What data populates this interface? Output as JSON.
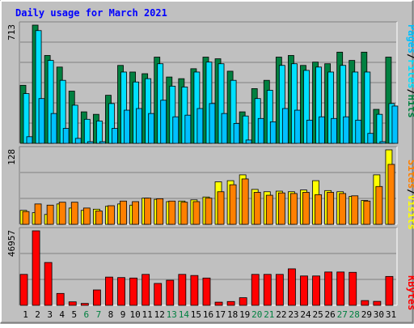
{
  "title": "Daily usage for March 2021",
  "colors": {
    "background": "#C0C0C0",
    "title": "#0000FF",
    "hits": "#008040",
    "files": "#00E0FF",
    "pages": "#00C0FF",
    "visits": "#FFFF00",
    "sites": "#FF8000",
    "kbytes": "#FF0000",
    "gridline": "#808080",
    "weekend_label": "#008040"
  },
  "labels": {
    "pages": "Pages",
    "files": "Files",
    "hits": "Hits",
    "sites": "Sites",
    "visits": "Visits",
    "kbytes": "KBytes",
    "sep": "/"
  },
  "chart_data": [
    {
      "type": "bar",
      "panel": "hits-files-pages",
      "ymax_label": "713",
      "ylim": [
        0,
        713
      ],
      "categories": [
        "1",
        "2",
        "3",
        "4",
        "5",
        "6",
        "7",
        "8",
        "9",
        "10",
        "11",
        "12",
        "13",
        "14",
        "15",
        "16",
        "17",
        "18",
        "19",
        "20",
        "21",
        "22",
        "23",
        "24",
        "25",
        "26",
        "27",
        "28",
        "29",
        "30",
        "31"
      ],
      "weekend_days": [
        "6",
        "7",
        "13",
        "14",
        "20",
        "21",
        "27",
        "28"
      ],
      "series": [
        {
          "name": "Hits",
          "values": [
            350,
            713,
            530,
            460,
            315,
            190,
            175,
            290,
            470,
            430,
            420,
            520,
            400,
            390,
            450,
            520,
            510,
            435,
            190,
            330,
            380,
            520,
            530,
            470,
            490,
            480,
            550,
            500,
            550,
            205,
            520
          ]
        },
        {
          "name": "Files",
          "values": [
            300,
            680,
            500,
            380,
            230,
            145,
            135,
            240,
            430,
            370,
            390,
            480,
            345,
            340,
            430,
            490,
            480,
            380,
            165,
            270,
            320,
            470,
            480,
            440,
            460,
            430,
            470,
            430,
            430,
            175,
            240
          ]
        },
        {
          "name": "Pages",
          "values": [
            40,
            270,
            180,
            90,
            30,
            10,
            10,
            90,
            200,
            210,
            180,
            260,
            160,
            170,
            210,
            240,
            180,
            120,
            20,
            150,
            130,
            210,
            200,
            140,
            160,
            150,
            160,
            140,
            60,
            10,
            225
          ]
        }
      ]
    },
    {
      "type": "bar",
      "panel": "visits-sites",
      "ymax_label": "128",
      "ylim": [
        0,
        128
      ],
      "categories": [
        "1",
        "2",
        "3",
        "4",
        "5",
        "6",
        "7",
        "8",
        "9",
        "10",
        "11",
        "12",
        "13",
        "14",
        "15",
        "16",
        "17",
        "18",
        "19",
        "20",
        "21",
        "22",
        "23",
        "24",
        "25",
        "26",
        "27",
        "28",
        "29",
        "30",
        "31"
      ],
      "series": [
        {
          "name": "Visits",
          "values": [
            24,
            20,
            17,
            35,
            28,
            24,
            26,
            31,
            35,
            33,
            45,
            43,
            39,
            40,
            42,
            47,
            73,
            75,
            85,
            60,
            56,
            57,
            56,
            59,
            75,
            58,
            56,
            48,
            41,
            85,
            128
          ]
        },
        {
          "name": "Sites",
          "values": [
            22,
            35,
            33,
            38,
            38,
            28,
            23,
            32,
            40,
            39,
            45,
            44,
            40,
            38,
            39,
            45,
            56,
            68,
            78,
            55,
            50,
            54,
            53,
            55,
            51,
            55,
            53,
            49,
            40,
            65,
            103
          ]
        }
      ]
    },
    {
      "type": "bar",
      "panel": "kbytes",
      "ymax_label": "46957",
      "ylim": [
        0,
        46957
      ],
      "categories": [
        "1",
        "2",
        "3",
        "4",
        "5",
        "6",
        "7",
        "8",
        "9",
        "10",
        "11",
        "12",
        "13",
        "14",
        "15",
        "16",
        "17",
        "18",
        "19",
        "20",
        "21",
        "22",
        "23",
        "24",
        "25",
        "26",
        "27",
        "28",
        "29",
        "30",
        "31"
      ],
      "series": [
        {
          "name": "KBytes",
          "values": [
            19500,
            46957,
            27000,
            7500,
            2200,
            1200,
            9700,
            17800,
            17500,
            17200,
            19500,
            13800,
            15800,
            19500,
            18800,
            17200,
            2000,
            2400,
            4800,
            19500,
            19500,
            19500,
            23000,
            18500,
            18500,
            21000,
            21000,
            20800,
            3000,
            2500,
            18200
          ]
        }
      ]
    }
  ]
}
